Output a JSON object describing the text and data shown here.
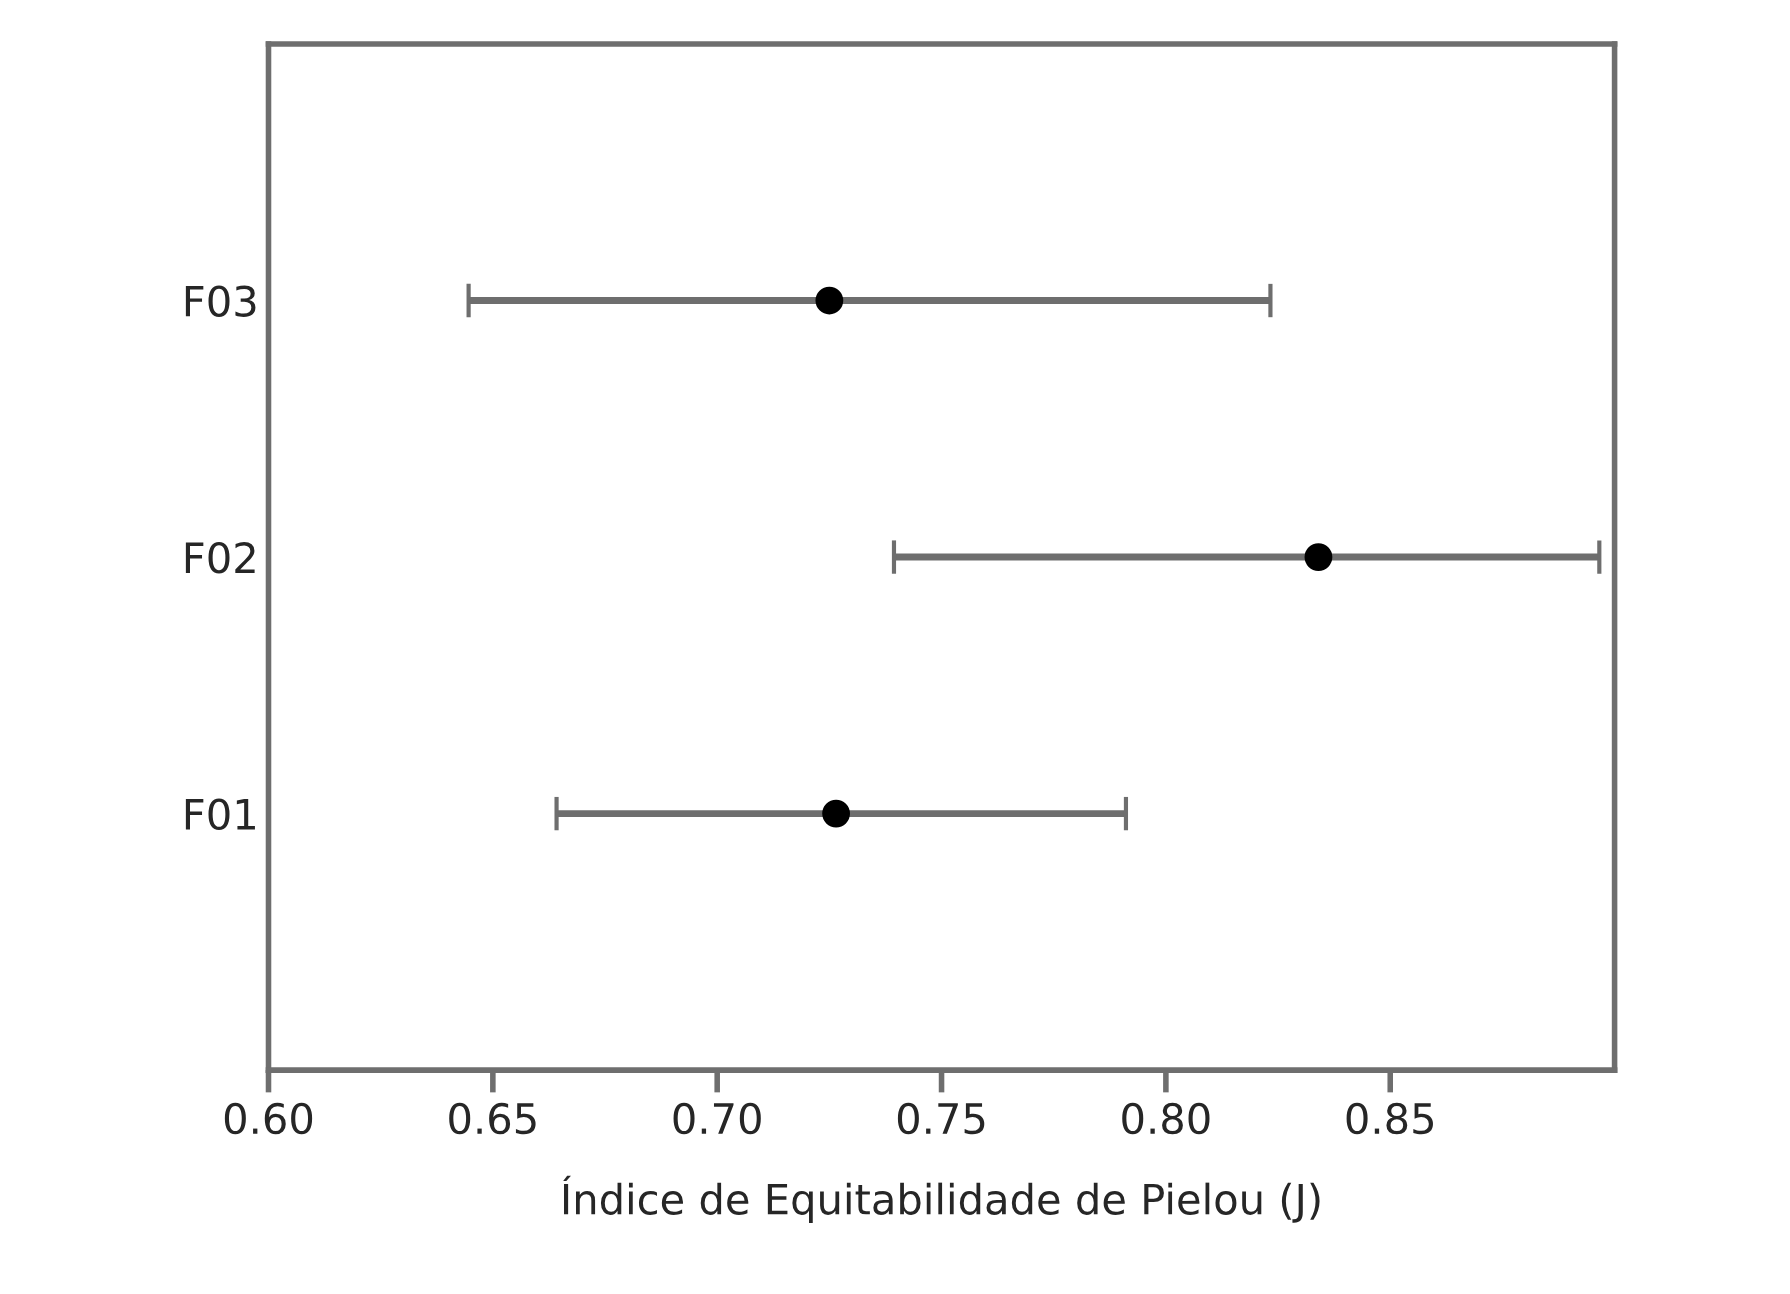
{
  "chart_data": {
    "type": "scatter",
    "orientation": "horizontal",
    "xlabel": "Índice de Equitabilidade de Pielou (J)",
    "categories": [
      "F03",
      "F02",
      "F01"
    ],
    "series": [
      {
        "color": "#000000",
        "values": [
          0.725,
          0.834,
          0.7265
        ],
        "errors": [
          [
            0.6446,
            0.8233
          ],
          [
            0.7394,
            0.8966
          ],
          [
            0.6642,
            0.7911
          ]
        ]
      }
    ],
    "xlim": [
      0.6,
      0.9
    ],
    "xticks": [
      {
        "value": 0.6,
        "label": "0.60"
      },
      0.65,
      {
        "value": 0.7,
        "label": "0.70"
      },
      0.75,
      {
        "value": 0.8,
        "label": "0.80"
      },
      0.85
    ],
    "marker": "circle"
  }
}
